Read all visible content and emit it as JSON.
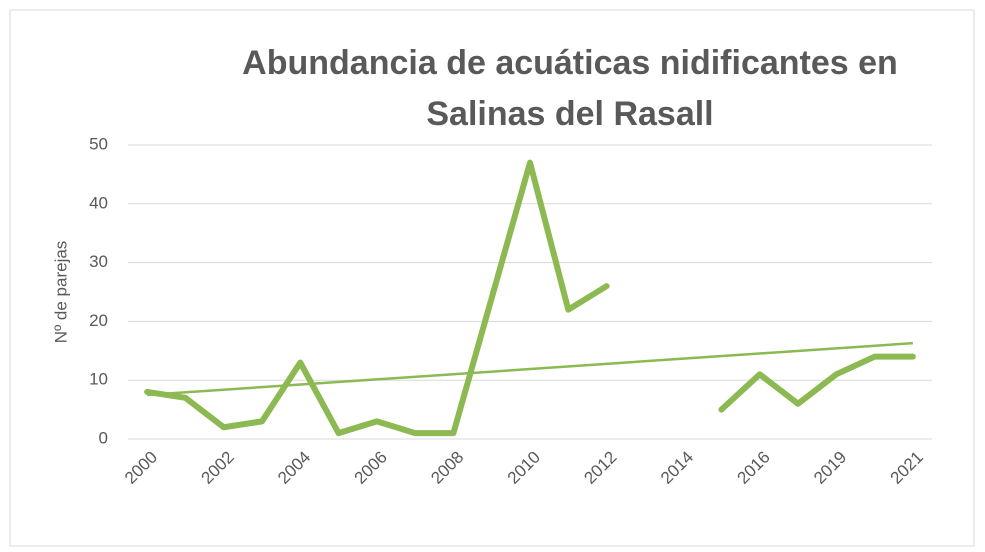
{
  "chart_data": {
    "type": "line",
    "title": [
      "Abundancia de acuáticas nidificantes en",
      "Salinas del Rasall"
    ],
    "y_label": "Nº de parejas",
    "categories": [
      "2000",
      null,
      "2002",
      null,
      "2004",
      null,
      "2006",
      null,
      "2008",
      null,
      "2010",
      null,
      "2012",
      null,
      "2014",
      null,
      "2016",
      null,
      "2019",
      null,
      "2021"
    ],
    "series": [
      {
        "color": "#8cb951",
        "values": [
          8,
          7,
          2,
          3,
          13,
          1,
          3,
          1,
          1,
          24,
          47,
          22,
          26,
          null,
          null,
          5,
          11,
          6,
          11,
          14,
          14
        ]
      }
    ],
    "trendline": {
      "color": "#8cb951",
      "start": 7.5,
      "end": 16.3
    },
    "ylim": [
      0,
      50
    ],
    "yticks": [
      0,
      10,
      20,
      30,
      40,
      50
    ],
    "grid": true
  }
}
